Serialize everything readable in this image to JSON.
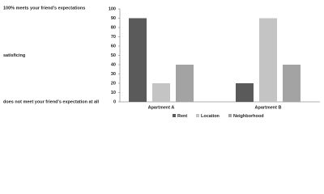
{
  "chart_data": {
    "type": "bar",
    "annotations": [
      "100% meets your friend's expectations",
      "satisficing",
      "does not meet your friend's expectation at all"
    ],
    "categories": [
      "Apartment  A",
      "Apartment  B"
    ],
    "series": [
      {
        "name": "Rent",
        "color": "#5a5a5a",
        "values": [
          90,
          20
        ]
      },
      {
        "name": "Location",
        "color": "#c4c4c4",
        "values": [
          20,
          90
        ]
      },
      {
        "name": "Neighborhood",
        "color": "#a3a3a3",
        "values": [
          40,
          40
        ]
      }
    ],
    "ylim": [
      0,
      100
    ],
    "yticks": [
      0,
      10,
      20,
      30,
      40,
      50,
      60,
      70,
      80,
      90,
      100
    ],
    "grid": false,
    "legend": "bottom"
  }
}
